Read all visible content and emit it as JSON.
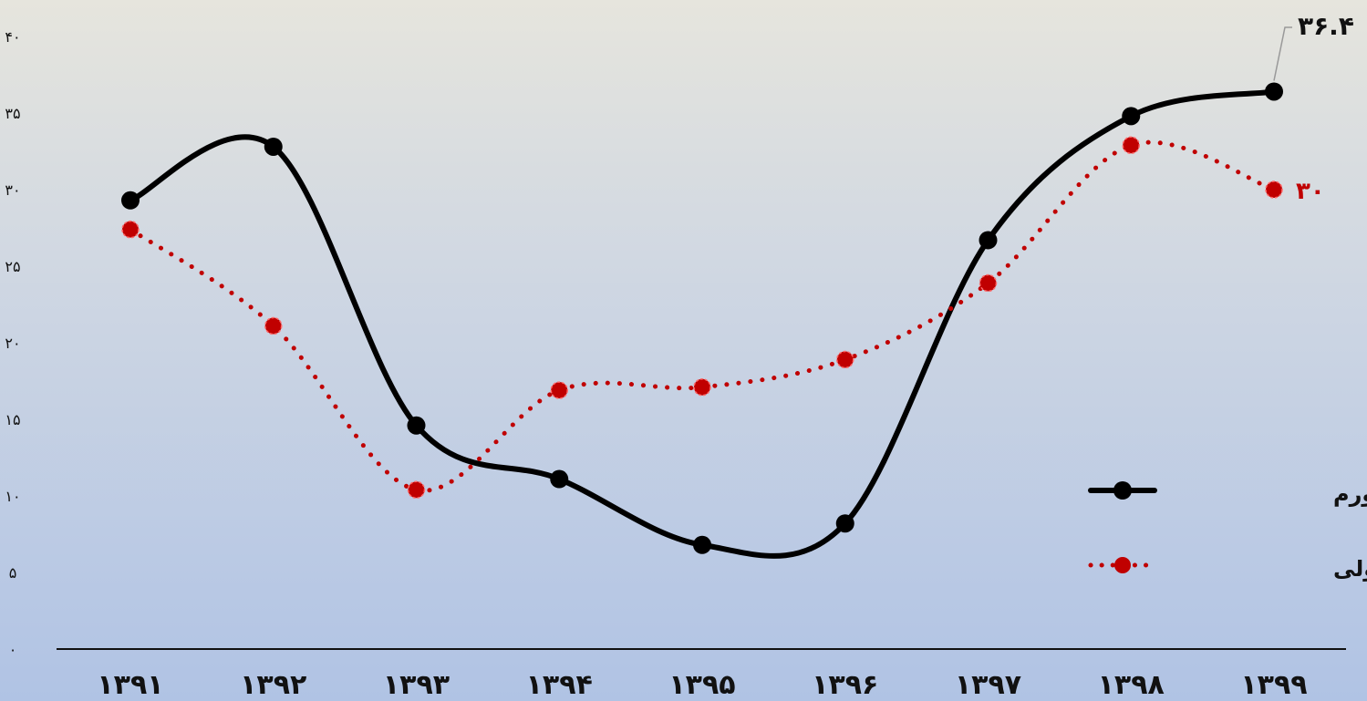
{
  "chart_data": {
    "type": "line",
    "categories": [
      "۱۳۹۱",
      "۱۳۹۲",
      "۱۳۹۳",
      "۱۳۹۴",
      "۱۳۹۵",
      "۱۳۹۶",
      "۱۳۹۷",
      "۱۳۹۸",
      "۱۳۹۹"
    ],
    "ylim": [
      0,
      40
    ],
    "yticks": [
      0,
      5,
      10,
      15,
      20,
      25,
      30,
      35,
      40
    ],
    "ytick_labels": [
      "۰",
      "۵",
      "۱۰",
      "۱۵",
      "۲۰",
      "۲۵",
      "۳۰",
      "۳۵",
      "۴۰"
    ],
    "series": [
      {
        "name": "تورم",
        "color": "#000000",
        "style": "solid",
        "marker": "circle",
        "values": [
          29.3,
          32.8,
          14.6,
          11.1,
          6.8,
          8.2,
          26.7,
          34.8,
          36.4
        ]
      },
      {
        "name": "رشد پایه پولی",
        "color": "#c00000",
        "style": "dotted",
        "marker": "circle",
        "values": [
          27.4,
          21.1,
          10.4,
          16.9,
          17.1,
          18.9,
          23.9,
          32.9,
          30.0
        ]
      }
    ],
    "data_labels": [
      {
        "series": 0,
        "index": 8,
        "text": "۳۶.۴"
      },
      {
        "series": 1,
        "index": 8,
        "text": "۳۰"
      }
    ],
    "legend_position": "right"
  }
}
